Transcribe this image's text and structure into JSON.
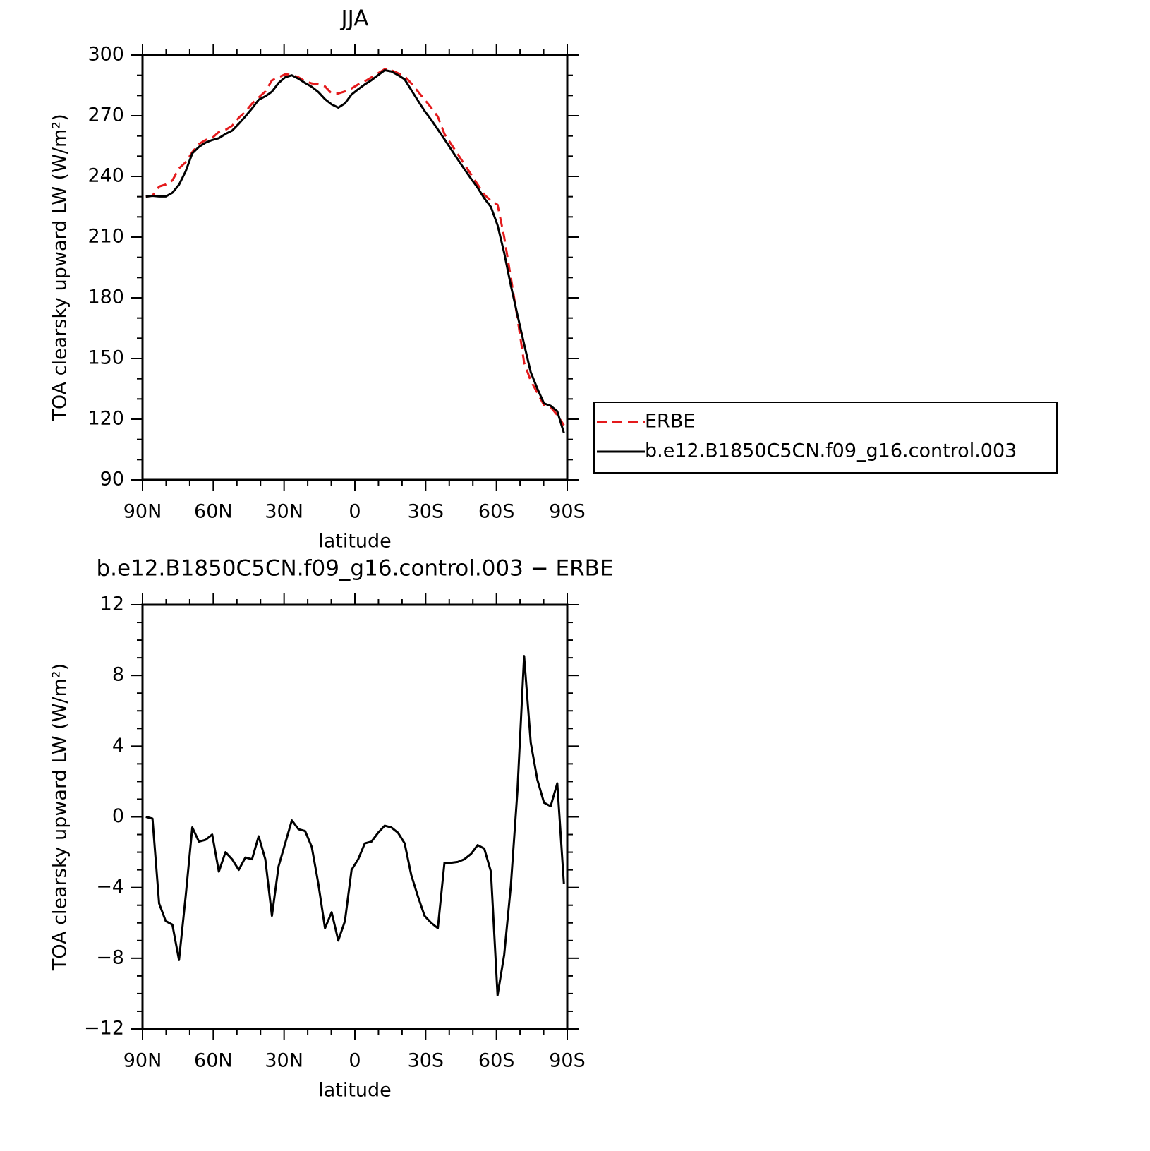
{
  "chart_data": [
    {
      "type": "line",
      "title": "JJA",
      "xlabel": "latitude",
      "ylabel": "TOA clearsky upward LW (W/m²)",
      "x": [
        88.59375,
        85.78125,
        82.96875,
        80.15625,
        77.34375,
        74.53125,
        71.71875,
        68.90625,
        66.09375,
        63.28125,
        60.46875,
        57.65625,
        54.84375,
        52.03125,
        49.21875,
        46.40625,
        43.59375,
        40.78125,
        37.96875,
        35.15625,
        32.34375,
        29.53125,
        26.71875,
        23.90625,
        21.09375,
        18.28125,
        15.46875,
        12.65625,
        9.84375,
        7.03125,
        4.21875,
        1.40625,
        -1.40625,
        -4.21875,
        -7.03125,
        -9.84375,
        -12.65625,
        -15.46875,
        -18.28125,
        -21.09375,
        -23.90625,
        -26.71875,
        -29.53125,
        -32.34375,
        -35.15625,
        -37.96875,
        -40.78125,
        -43.59375,
        -46.40625,
        -49.21875,
        -52.03125,
        -54.84375,
        -57.65625,
        -60.46875,
        -63.28125,
        -66.09375,
        -68.90625,
        -71.71875,
        -74.53125,
        -77.34375,
        -80.15625,
        -82.96875,
        -85.78125,
        -88.59375
      ],
      "series": [
        {
          "name": "ERBE",
          "color": "#e41a1c",
          "linestyle": "dashed",
          "values": [
            230,
            230.5,
            235,
            236,
            238,
            244,
            247,
            252,
            256,
            258,
            259,
            262,
            263,
            265,
            269,
            272,
            276,
            279,
            282,
            287.5,
            289,
            290.5,
            290.2,
            289,
            287,
            286,
            285.5,
            284.5,
            281,
            281,
            282,
            283.5,
            285.5,
            287,
            289,
            291,
            293,
            292.5,
            291,
            289.5,
            286,
            282,
            278,
            274,
            269.5,
            261,
            256,
            251,
            246,
            241,
            236,
            231,
            228,
            226,
            210,
            190,
            170,
            148,
            139,
            133,
            127,
            126,
            122,
            117
          ]
        },
        {
          "name": "b.e12.B1850C5CN.f09_g16.control.003",
          "color": "#000000",
          "linestyle": "solid",
          "values": [
            230.0,
            230.4,
            230.1,
            230.1,
            231.9,
            235.9,
            242.5,
            251.4,
            254.6,
            256.7,
            258.0,
            258.9,
            261.0,
            262.6,
            266.0,
            269.7,
            273.6,
            277.9,
            279.6,
            281.9,
            286.2,
            289.0,
            290.0,
            288.3,
            286.2,
            284.3,
            281.7,
            278.2,
            275.6,
            274.0,
            276.1,
            280.5,
            283.1,
            285.5,
            287.6,
            290.1,
            292.5,
            291.9,
            290.1,
            288.0,
            282.7,
            277.5,
            272.4,
            268.0,
            263.2,
            258.4,
            253.4,
            248.45,
            243.6,
            238.9,
            234.4,
            229.2,
            224.9,
            215.9,
            202.2,
            186.1,
            171.5,
            157.1,
            143.2,
            135.1,
            127.8,
            126.6,
            123.9,
            113.2
          ]
        }
      ],
      "xlim": [
        90,
        -90
      ],
      "xticks": [
        {
          "value": 90,
          "label": "90N"
        },
        {
          "value": 60,
          "label": "60N"
        },
        {
          "value": 30,
          "label": "30N"
        },
        0,
        {
          "value": -30,
          "label": "30S"
        },
        {
          "value": -60,
          "label": "60S"
        },
        {
          "value": -90,
          "label": "90S"
        }
      ],
      "ylim": [
        90,
        300
      ],
      "yticks": [
        90,
        120,
        150,
        180,
        210,
        240,
        270,
        300
      ],
      "legend": "outside-right"
    },
    {
      "type": "line",
      "title": "b.e12.B1850C5CN.f09_g16.control.003 − ERBE",
      "xlabel": "latitude",
      "ylabel": "TOA clearsky upward LW (W/m²)",
      "x": [
        88.59375,
        85.78125,
        82.96875,
        80.15625,
        77.34375,
        74.53125,
        71.71875,
        68.90625,
        66.09375,
        63.28125,
        60.46875,
        57.65625,
        54.84375,
        52.03125,
        49.21875,
        46.40625,
        43.59375,
        40.78125,
        37.96875,
        35.15625,
        32.34375,
        29.53125,
        26.71875,
        23.90625,
        21.09375,
        18.28125,
        15.46875,
        12.65625,
        9.84375,
        7.03125,
        4.21875,
        1.40625,
        -1.40625,
        -4.21875,
        -7.03125,
        -9.84375,
        -12.65625,
        -15.46875,
        -18.28125,
        -21.09375,
        -23.90625,
        -26.71875,
        -29.53125,
        -32.34375,
        -35.15625,
        -37.96875,
        -40.78125,
        -43.59375,
        -46.40625,
        -49.21875,
        -52.03125,
        -54.84375,
        -57.65625,
        -60.46875,
        -63.28125,
        -66.09375,
        -68.90625,
        -71.71875,
        -74.53125,
        -77.34375,
        -80.15625,
        -82.96875,
        -85.78125,
        -88.59375
      ],
      "series": [
        {
          "color": "#000000",
          "linestyle": "solid",
          "values": [
            0,
            -0.1,
            -4.9,
            -5.9,
            -6.1,
            -8.1,
            -4.5,
            -0.6,
            -1.4,
            -1.3,
            -1.0,
            -3.1,
            -2.0,
            -2.4,
            -3.0,
            -2.3,
            -2.4,
            -1.1,
            -2.4,
            -5.6,
            -2.8,
            -1.5,
            -0.2,
            -0.7,
            -0.8,
            -1.7,
            -3.8,
            -6.3,
            -5.4,
            -7.0,
            -5.9,
            -3.0,
            -2.4,
            -1.5,
            -1.4,
            -0.9,
            -0.5,
            -0.6,
            -0.9,
            -1.5,
            -3.3,
            -4.5,
            -5.6,
            -6.0,
            -6.3,
            -2.6,
            -2.6,
            -2.55,
            -2.4,
            -2.1,
            -1.6,
            -1.8,
            -3.1,
            -10.1,
            -7.8,
            -3.9,
            1.5,
            9.1,
            4.2,
            2.1,
            0.8,
            0.6,
            1.9,
            -3.8
          ]
        }
      ],
      "xlim": [
        90,
        -90
      ],
      "xticks": [
        {
          "value": 90,
          "label": "90N"
        },
        {
          "value": 60,
          "label": "60N"
        },
        {
          "value": 30,
          "label": "30N"
        },
        0,
        {
          "value": -30,
          "label": "30S"
        },
        {
          "value": -60,
          "label": "60S"
        },
        {
          "value": -90,
          "label": "90S"
        }
      ],
      "ylim": [
        -12,
        12
      ],
      "yticks": [
        {
          "value": -12,
          "label": "−12"
        },
        {
          "value": -8,
          "label": "−8"
        },
        {
          "value": -4,
          "label": "−4"
        },
        0,
        4,
        8,
        12
      ]
    }
  ]
}
